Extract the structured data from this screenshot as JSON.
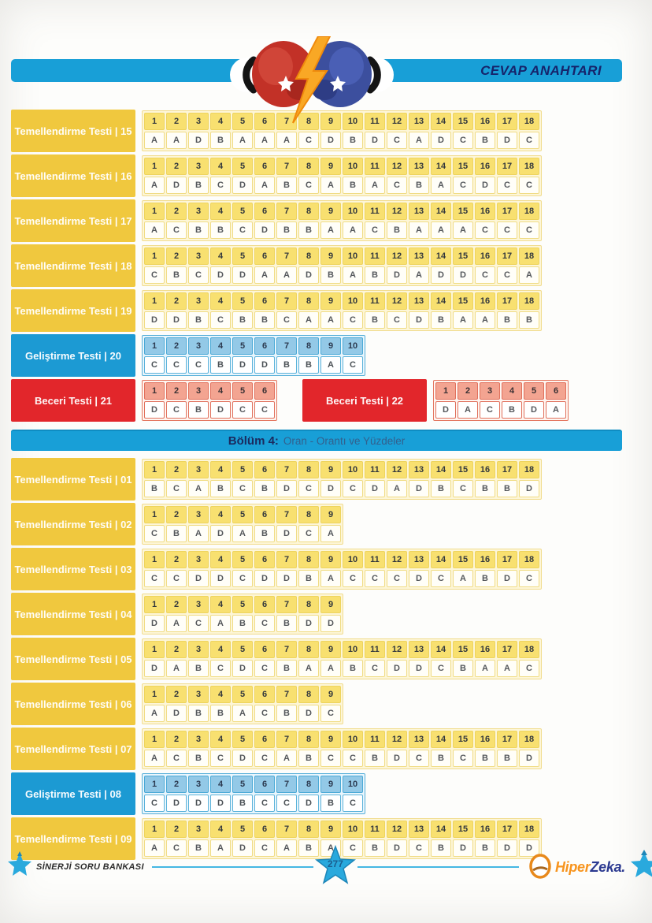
{
  "header": {
    "title": "CEVAP ANAHTARI"
  },
  "colors": {
    "cyan": "#189fd7",
    "yellow": "#f0c83e",
    "blue": "#1c9ad3",
    "red": "#e2262b",
    "navy": "#1b2a5e",
    "orange": "#f7941d"
  },
  "icons": {
    "emblem": "boxing-gloves-lightning-icon",
    "footer_left": "star-icon",
    "page_marker": "star-icon",
    "footer_right": "star-icon",
    "brand_mark": "hiperzeka-egg-icon"
  },
  "answer_groups": [
    {
      "section": null,
      "rows": [
        [
          {
            "label": "Temellendirme Testi | 15",
            "color": "yellow",
            "answers": [
              "A",
              "A",
              "D",
              "B",
              "A",
              "A",
              "A",
              "C",
              "D",
              "B",
              "D",
              "C",
              "A",
              "D",
              "C",
              "B",
              "D",
              "C"
            ]
          }
        ],
        [
          {
            "label": "Temellendirme Testi | 16",
            "color": "yellow",
            "answers": [
              "A",
              "D",
              "B",
              "C",
              "D",
              "A",
              "B",
              "C",
              "A",
              "B",
              "A",
              "C",
              "B",
              "A",
              "C",
              "D",
              "C",
              "C"
            ]
          }
        ],
        [
          {
            "label": "Temellendirme Testi | 17",
            "color": "yellow",
            "answers": [
              "A",
              "C",
              "B",
              "B",
              "C",
              "D",
              "B",
              "B",
              "A",
              "A",
              "C",
              "B",
              "A",
              "A",
              "A",
              "C",
              "C",
              "C"
            ]
          }
        ],
        [
          {
            "label": "Temellendirme Testi | 18",
            "color": "yellow",
            "answers": [
              "C",
              "B",
              "C",
              "D",
              "D",
              "A",
              "A",
              "D",
              "B",
              "A",
              "B",
              "D",
              "A",
              "D",
              "D",
              "C",
              "C",
              "A"
            ]
          }
        ],
        [
          {
            "label": "Temellendirme Testi | 19",
            "color": "yellow",
            "answers": [
              "D",
              "D",
              "B",
              "C",
              "B",
              "B",
              "C",
              "A",
              "A",
              "C",
              "B",
              "C",
              "D",
              "B",
              "A",
              "A",
              "B",
              "B"
            ]
          }
        ],
        [
          {
            "label": "Geliştirme Testi | 20",
            "color": "blue",
            "answers": [
              "C",
              "C",
              "C",
              "B",
              "D",
              "D",
              "B",
              "B",
              "A",
              "C"
            ]
          }
        ],
        [
          {
            "label": "Beceri Testi | 21",
            "color": "red",
            "answers": [
              "D",
              "C",
              "B",
              "D",
              "C",
              "C"
            ]
          },
          {
            "label": "Beceri Testi | 22",
            "color": "red",
            "answers": [
              "D",
              "A",
              "C",
              "B",
              "D",
              "A"
            ]
          }
        ]
      ]
    },
    {
      "section": {
        "bold": "Bölüm 4:",
        "title": "Oran - Orantı ve Yüzdeler"
      },
      "rows": [
        [
          {
            "label": "Temellendirme Testi | 01",
            "color": "yellow",
            "answers": [
              "B",
              "C",
              "A",
              "B",
              "C",
              "B",
              "D",
              "C",
              "D",
              "C",
              "D",
              "A",
              "D",
              "B",
              "C",
              "B",
              "B",
              "D"
            ]
          }
        ],
        [
          {
            "label": "Temellendirme Testi | 02",
            "color": "yellow",
            "answers": [
              "C",
              "B",
              "A",
              "D",
              "A",
              "B",
              "D",
              "C",
              "A"
            ]
          }
        ],
        [
          {
            "label": "Temellendirme Testi | 03",
            "color": "yellow",
            "answers": [
              "C",
              "C",
              "D",
              "D",
              "C",
              "D",
              "D",
              "B",
              "A",
              "C",
              "C",
              "C",
              "D",
              "C",
              "A",
              "B",
              "D",
              "C"
            ]
          }
        ],
        [
          {
            "label": "Temellendirme Testi | 04",
            "color": "yellow",
            "answers": [
              "D",
              "A",
              "C",
              "A",
              "B",
              "C",
              "B",
              "D",
              "D"
            ]
          }
        ],
        [
          {
            "label": "Temellendirme Testi | 05",
            "color": "yellow",
            "answers": [
              "D",
              "A",
              "B",
              "C",
              "D",
              "C",
              "B",
              "A",
              "A",
              "B",
              "C",
              "D",
              "D",
              "C",
              "B",
              "A",
              "A",
              "C"
            ]
          }
        ],
        [
          {
            "label": "Temellendirme Testi | 06",
            "color": "yellow",
            "answers": [
              "A",
              "D",
              "B",
              "B",
              "A",
              "C",
              "B",
              "D",
              "C"
            ]
          }
        ],
        [
          {
            "label": "Temellendirme Testi | 07",
            "color": "yellow",
            "answers": [
              "A",
              "C",
              "B",
              "C",
              "D",
              "C",
              "A",
              "B",
              "C",
              "C",
              "B",
              "D",
              "C",
              "B",
              "C",
              "B",
              "B",
              "D"
            ]
          }
        ],
        [
          {
            "label": "Geliştirme Testi | 08",
            "color": "blue",
            "answers": [
              "C",
              "D",
              "D",
              "D",
              "B",
              "C",
              "C",
              "D",
              "B",
              "C"
            ]
          }
        ],
        [
          {
            "label": "Temellendirme Testi | 09",
            "color": "yellow",
            "answers": [
              "A",
              "C",
              "B",
              "A",
              "D",
              "C",
              "A",
              "B",
              "A",
              "C",
              "B",
              "D",
              "C",
              "B",
              "D",
              "B",
              "D",
              "D"
            ]
          }
        ]
      ]
    }
  ],
  "footer": {
    "left_text": "SİNERJİ SORU BANKASI",
    "page": "277",
    "brand_hiper": "Hiper",
    "brand_zeka": "Zeka."
  }
}
